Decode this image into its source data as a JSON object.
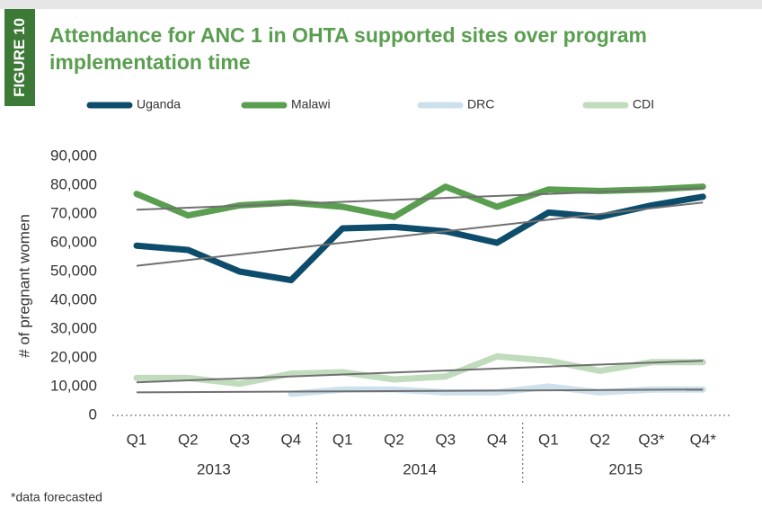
{
  "figure_label": "FIGURE 10",
  "chart_data": {
    "type": "line",
    "title": "Attendance for ANC 1 in OHTA supported sites over program implementation time",
    "y_label": "# of pregnant women",
    "categories": [
      "Q1",
      "Q2",
      "Q3",
      "Q4",
      "Q1",
      "Q2",
      "Q3",
      "Q4",
      "Q1",
      "Q2",
      "Q3*",
      "Q4*"
    ],
    "groups": [
      "2013",
      "2014",
      "2015"
    ],
    "series": [
      {
        "name": "Uganda",
        "color": "#0d4d6b",
        "values": [
          59000,
          57500,
          50000,
          47000,
          65000,
          65500,
          64000,
          60000,
          70500,
          69000,
          73000,
          76000
        ]
      },
      {
        "name": "Malawi",
        "color": "#5a9e50",
        "values": [
          77000,
          69500,
          73000,
          74000,
          72500,
          69000,
          79500,
          72500,
          78500,
          78000,
          78500,
          79500
        ]
      },
      {
        "name": "DRC",
        "color": "#cde1ec",
        "values": [
          null,
          null,
          null,
          7500,
          9000,
          9000,
          8000,
          8000,
          10000,
          8000,
          9000,
          9000
        ]
      },
      {
        "name": "CDI",
        "color": "#c1dcbd",
        "values": [
          13000,
          13000,
          11000,
          14500,
          15000,
          12500,
          13500,
          20500,
          19000,
          15500,
          18500,
          18500
        ]
      }
    ],
    "trendlines": [
      {
        "values": [
          52000,
          74000
        ]
      },
      {
        "values": [
          71500,
          79000
        ]
      },
      {
        "values": [
          8000,
          9000
        ]
      },
      {
        "values": [
          11500,
          19000
        ]
      }
    ],
    "trendline_color": "#707070",
    "ylim": [
      0,
      90000
    ],
    "yticks": [
      0,
      {
        "value": 10000,
        "label": "10,000"
      },
      {
        "value": 20000,
        "label": "20,000"
      },
      {
        "value": 30000,
        "label": "30,000"
      },
      {
        "value": 40000,
        "label": "40,000"
      },
      {
        "value": 50000,
        "label": "50,000"
      },
      {
        "value": 60000,
        "label": "60,000"
      },
      {
        "value": 70000,
        "label": "70,000"
      },
      {
        "value": 80000,
        "label": "80,000"
      },
      {
        "value": 90000,
        "label": "90,000"
      }
    ],
    "grid": false,
    "footnote": "*data forecasted"
  }
}
